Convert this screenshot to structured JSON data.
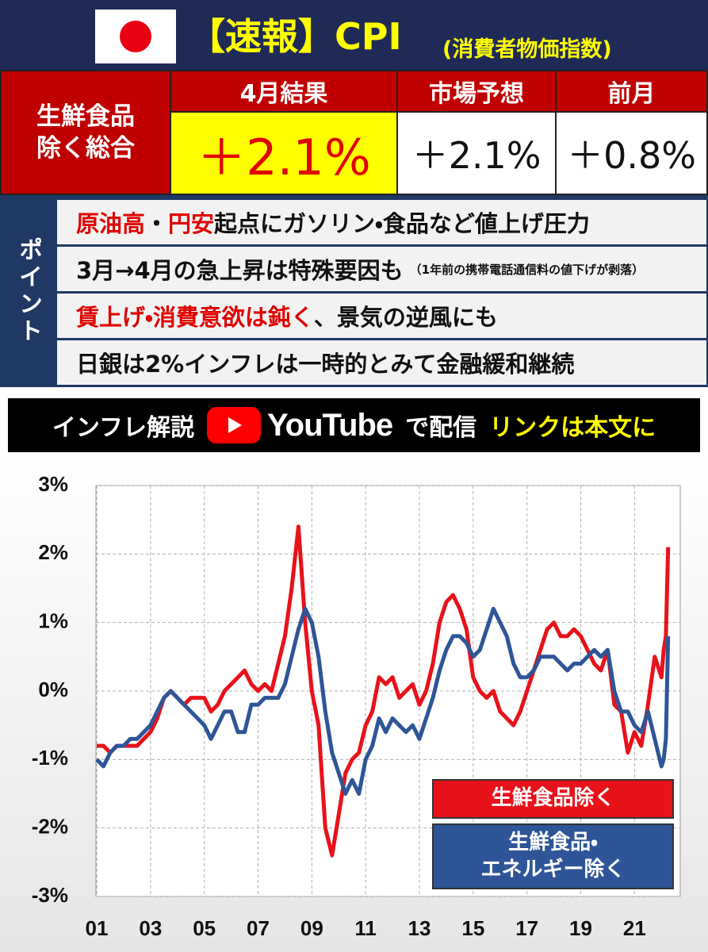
{
  "header": {
    "title": "【速報】CPI",
    "subtitle": "(消費者物価指数)"
  },
  "table": {
    "row_label": "生鮮食品\n除く総合",
    "columns": [
      "4月結果",
      "市場予想",
      "前月"
    ],
    "values": [
      "＋2.1%",
      "＋2.1%",
      "＋0.8%"
    ]
  },
  "points": {
    "label": "ポイント",
    "rows": [
      [
        {
          "text": "原油高",
          "highlight": true
        },
        {
          "text": "・"
        },
        {
          "text": "円安",
          "highlight": true
        },
        {
          "text": "起点にガソリン・食品など値上げ圧力"
        }
      ],
      [
        {
          "text": "3月→4月の急上昇は特殊要因も"
        },
        {
          "text": "（1年前の携帯電話通信料の値下げが剥落）",
          "small": true
        }
      ],
      [
        {
          "text": "賃上げ・消費意欲は鈍く",
          "highlight": true
        },
        {
          "text": "、景気の逆風にも"
        }
      ],
      [
        {
          "text": "日銀は2%インフレは一時的とみて金融緩和継続"
        }
      ]
    ]
  },
  "banner": {
    "lead": "インフレ解説",
    "platform": "YouTube",
    "action": "で配信",
    "note": "リンクは本文に"
  },
  "chart_data": {
    "type": "line",
    "x": [
      2001,
      2001.25,
      2001.5,
      2001.75,
      2002,
      2002.25,
      2002.5,
      2002.75,
      2003,
      2003.25,
      2003.5,
      2003.75,
      2004,
      2004.25,
      2004.5,
      2004.75,
      2005,
      2005.25,
      2005.5,
      2005.75,
      2006,
      2006.25,
      2006.5,
      2006.75,
      2007,
      2007.25,
      2007.5,
      2007.75,
      2008,
      2008.25,
      2008.5,
      2008.75,
      2009,
      2009.25,
      2009.5,
      2009.75,
      2010,
      2010.25,
      2010.5,
      2010.75,
      2011,
      2011.25,
      2011.5,
      2011.75,
      2012,
      2012.25,
      2012.5,
      2012.75,
      2013,
      2013.25,
      2013.5,
      2013.75,
      2014,
      2014.25,
      2014.5,
      2014.75,
      2015,
      2015.25,
      2015.5,
      2015.75,
      2016,
      2016.25,
      2016.5,
      2016.75,
      2017,
      2017.25,
      2017.5,
      2017.75,
      2018,
      2018.25,
      2018.5,
      2018.75,
      2019,
      2019.25,
      2019.5,
      2019.75,
      2020,
      2020.25,
      2020.5,
      2020.75,
      2021,
      2021.25,
      2021.5,
      2021.75,
      2022,
      2022.083,
      2022.167,
      2022.25
    ],
    "series": [
      {
        "name": "生鮮食品除く",
        "color": "#e8121a",
        "values": [
          -0.8,
          -0.8,
          -0.9,
          -0.8,
          -0.8,
          -0.8,
          -0.8,
          -0.7,
          -0.6,
          -0.4,
          -0.1,
          0.0,
          -0.1,
          -0.2,
          -0.1,
          -0.1,
          -0.1,
          -0.3,
          -0.2,
          0.0,
          0.1,
          0.2,
          0.3,
          0.1,
          0.0,
          0.1,
          0.0,
          0.4,
          0.8,
          1.5,
          2.4,
          1.0,
          0.0,
          -0.5,
          -2.0,
          -2.4,
          -1.8,
          -1.2,
          -1.0,
          -0.9,
          -0.5,
          -0.3,
          0.2,
          0.1,
          0.2,
          -0.1,
          0.0,
          0.1,
          -0.2,
          0.0,
          0.4,
          1.0,
          1.3,
          1.4,
          1.2,
          0.9,
          0.2,
          0.0,
          -0.1,
          0.0,
          -0.3,
          -0.4,
          -0.5,
          -0.3,
          0.0,
          0.3,
          0.6,
          0.9,
          1.0,
          0.8,
          0.8,
          0.9,
          0.8,
          0.6,
          0.4,
          0.3,
          0.6,
          -0.2,
          -0.3,
          -0.9,
          -0.6,
          -0.8,
          -0.2,
          0.5,
          0.2,
          0.6,
          0.8,
          2.1
        ]
      },
      {
        "name": "生鮮食品・\nエネルギー除く",
        "color": "#2e5597",
        "values": [
          -1.0,
          -1.1,
          -0.9,
          -0.8,
          -0.8,
          -0.7,
          -0.7,
          -0.6,
          -0.5,
          -0.3,
          -0.1,
          0.0,
          -0.1,
          -0.2,
          -0.3,
          -0.4,
          -0.5,
          -0.7,
          -0.5,
          -0.3,
          -0.3,
          -0.6,
          -0.6,
          -0.2,
          -0.2,
          -0.1,
          -0.1,
          -0.1,
          0.1,
          0.5,
          0.9,
          1.2,
          1.0,
          0.5,
          -0.3,
          -0.9,
          -1.2,
          -1.5,
          -1.3,
          -1.5,
          -1.0,
          -0.8,
          -0.4,
          -0.6,
          -0.4,
          -0.5,
          -0.6,
          -0.5,
          -0.7,
          -0.4,
          -0.1,
          0.3,
          0.6,
          0.8,
          0.8,
          0.7,
          0.5,
          0.6,
          0.9,
          1.2,
          1.0,
          0.8,
          0.4,
          0.2,
          0.2,
          0.3,
          0.5,
          0.5,
          0.5,
          0.4,
          0.3,
          0.4,
          0.4,
          0.5,
          0.6,
          0.5,
          0.6,
          0.0,
          -0.3,
          -0.3,
          -0.5,
          -0.6,
          -0.3,
          -0.7,
          -1.1,
          -1.0,
          -0.7,
          0.8
        ]
      }
    ],
    "xlim": [
      2001,
      2022.7
    ],
    "xticks": [
      {
        "value": 2001,
        "label": "01"
      },
      {
        "value": 2003,
        "label": "03"
      },
      {
        "value": 2005,
        "label": "05"
      },
      {
        "value": 2007,
        "label": "07"
      },
      {
        "value": 2009,
        "label": "09"
      },
      {
        "value": 2011,
        "label": "11"
      },
      {
        "value": 2013,
        "label": "13"
      },
      {
        "value": 2015,
        "label": "15"
      },
      {
        "value": 2017,
        "label": "17"
      },
      {
        "value": 2019,
        "label": "19"
      },
      {
        "value": 2021,
        "label": "21"
      }
    ],
    "ylim": [
      -3,
      3
    ],
    "yticks": [
      {
        "value": -3,
        "label": "-3%"
      },
      {
        "value": -2,
        "label": "-2%"
      },
      {
        "value": -1,
        "label": "-1%"
      },
      {
        "value": 0,
        "label": "0%"
      },
      {
        "value": 1,
        "label": "1%"
      },
      {
        "value": 2,
        "label": "2%"
      },
      {
        "value": 3,
        "label": "3%"
      }
    ],
    "grid": true,
    "legend": "lower right"
  }
}
